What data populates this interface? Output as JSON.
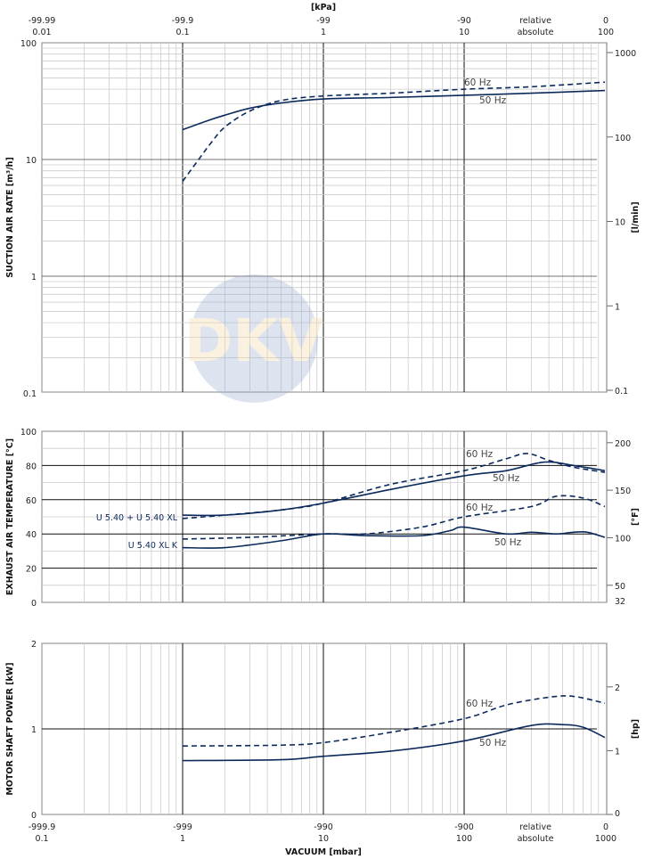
{
  "logo_text": "DKV",
  "top_axis": {
    "unit": "[kPa]",
    "relative_label": "relative",
    "absolute_label": "absolute",
    "relative": [
      "-99.99",
      "-99.9",
      "-99",
      "-90",
      "0"
    ],
    "absolute": [
      "0.01",
      "0.1",
      "1",
      "10",
      "100"
    ]
  },
  "bottom_axis": {
    "title": "VACUUM  [mbar]",
    "relative_label": "relative",
    "absolute_label": "absolute",
    "relative": [
      "-999.9",
      "-999",
      "-990",
      "-900",
      "0"
    ],
    "absolute": [
      "0.1",
      "1",
      "10",
      "100",
      "1000"
    ]
  },
  "chart_data": [
    {
      "type": "line",
      "title": "",
      "ylabel": "SUCTION AIR RATE  [m³/h]",
      "ylabel_right": "[l/min]",
      "xscale": "log",
      "xlim": [
        0.1,
        1000
      ],
      "yscale": "log",
      "ylim": [
        0.1,
        100
      ],
      "yticks": [
        "0.1",
        "1",
        "10",
        "100"
      ],
      "yticks_right": [
        "0.1",
        "1",
        "10",
        "100",
        "1000"
      ],
      "series": [
        {
          "name": "60 Hz",
          "style": "dashed",
          "x": [
            1,
            1.3,
            1.6,
            2,
            3,
            5,
            10,
            30,
            100,
            300,
            1000
          ],
          "y": [
            6.5,
            10,
            14,
            19,
            26,
            32,
            35,
            37,
            40,
            42,
            46
          ]
        },
        {
          "name": "50 Hz",
          "style": "solid",
          "x": [
            1,
            1.5,
            2,
            3,
            5,
            10,
            30,
            100,
            300,
            1000
          ],
          "y": [
            18,
            21.5,
            24,
            27.5,
            30.5,
            33,
            34,
            35.5,
            37,
            39
          ]
        }
      ]
    },
    {
      "type": "line",
      "title": "",
      "ylabel": "EXHAUST AIR TEMPERATURE  [°C]",
      "ylabel_right": "[°F]",
      "xscale": "log",
      "xlim": [
        0.1,
        1000
      ],
      "ylim": [
        0,
        100
      ],
      "yticks": [
        "0",
        "20",
        "40",
        "60",
        "80",
        "100"
      ],
      "yticks_right": [
        "32",
        "50",
        "100",
        "150",
        "200"
      ],
      "annotations": [
        "U 5.40 + U 5.40 XL",
        "U 5.40 XL K"
      ],
      "series": [
        {
          "name": "60 Hz",
          "group": "U 5.40 + U 5.40 XL",
          "style": "dashed",
          "x": [
            1,
            2,
            5,
            10,
            30,
            100,
            200,
            280,
            400,
            600,
            1000
          ],
          "y": [
            49,
            51,
            54,
            58,
            69,
            77,
            84,
            87,
            83,
            79,
            76
          ]
        },
        {
          "name": "50 Hz",
          "group": "U 5.40 + U 5.40 XL",
          "style": "solid",
          "x": [
            1,
            2,
            5,
            10,
            30,
            100,
            200,
            370,
            600,
            1000
          ],
          "y": [
            51,
            51,
            54,
            58,
            66,
            74,
            77,
            82,
            80,
            77
          ]
        },
        {
          "name": "60 Hz",
          "group": "U 5.40 XL K",
          "style": "dashed",
          "x": [
            1,
            3,
            10,
            20,
            50,
            100,
            300,
            450,
            700,
            1000
          ],
          "y": [
            37,
            38,
            40,
            40,
            44,
            50,
            56,
            62,
            61,
            56
          ]
        },
        {
          "name": "50 Hz",
          "group": "U 5.40 XL K",
          "style": "solid",
          "x": [
            1,
            2,
            5,
            10,
            20,
            50,
            80,
            100,
            200,
            300,
            450,
            600,
            750,
            1000
          ],
          "y": [
            32,
            32,
            36,
            40,
            39,
            39,
            42,
            44,
            40,
            41,
            40,
            41,
            41,
            38
          ]
        }
      ]
    },
    {
      "type": "line",
      "title": "",
      "ylabel": "MOTOR SHAFT POWER  [kW]",
      "ylabel_right": "[hp]",
      "xscale": "log",
      "xlim": [
        0.1,
        1000
      ],
      "ylim": [
        0,
        2
      ],
      "yticks": [
        "0",
        "1",
        "2"
      ],
      "yticks_right": [
        "0",
        "1",
        "2"
      ],
      "series": [
        {
          "name": "60 Hz",
          "style": "dashed",
          "x": [
            1,
            5,
            10,
            30,
            100,
            200,
            400,
            600,
            1000
          ],
          "y": [
            0.8,
            0.81,
            0.84,
            0.96,
            1.12,
            1.28,
            1.37,
            1.38,
            1.3
          ]
        },
        {
          "name": "50 Hz",
          "style": "solid",
          "x": [
            1,
            5,
            10,
            30,
            100,
            300,
            500,
            700,
            1000
          ],
          "y": [
            0.63,
            0.64,
            0.68,
            0.74,
            0.86,
            1.04,
            1.05,
            1.02,
            0.9
          ]
        }
      ]
    }
  ]
}
